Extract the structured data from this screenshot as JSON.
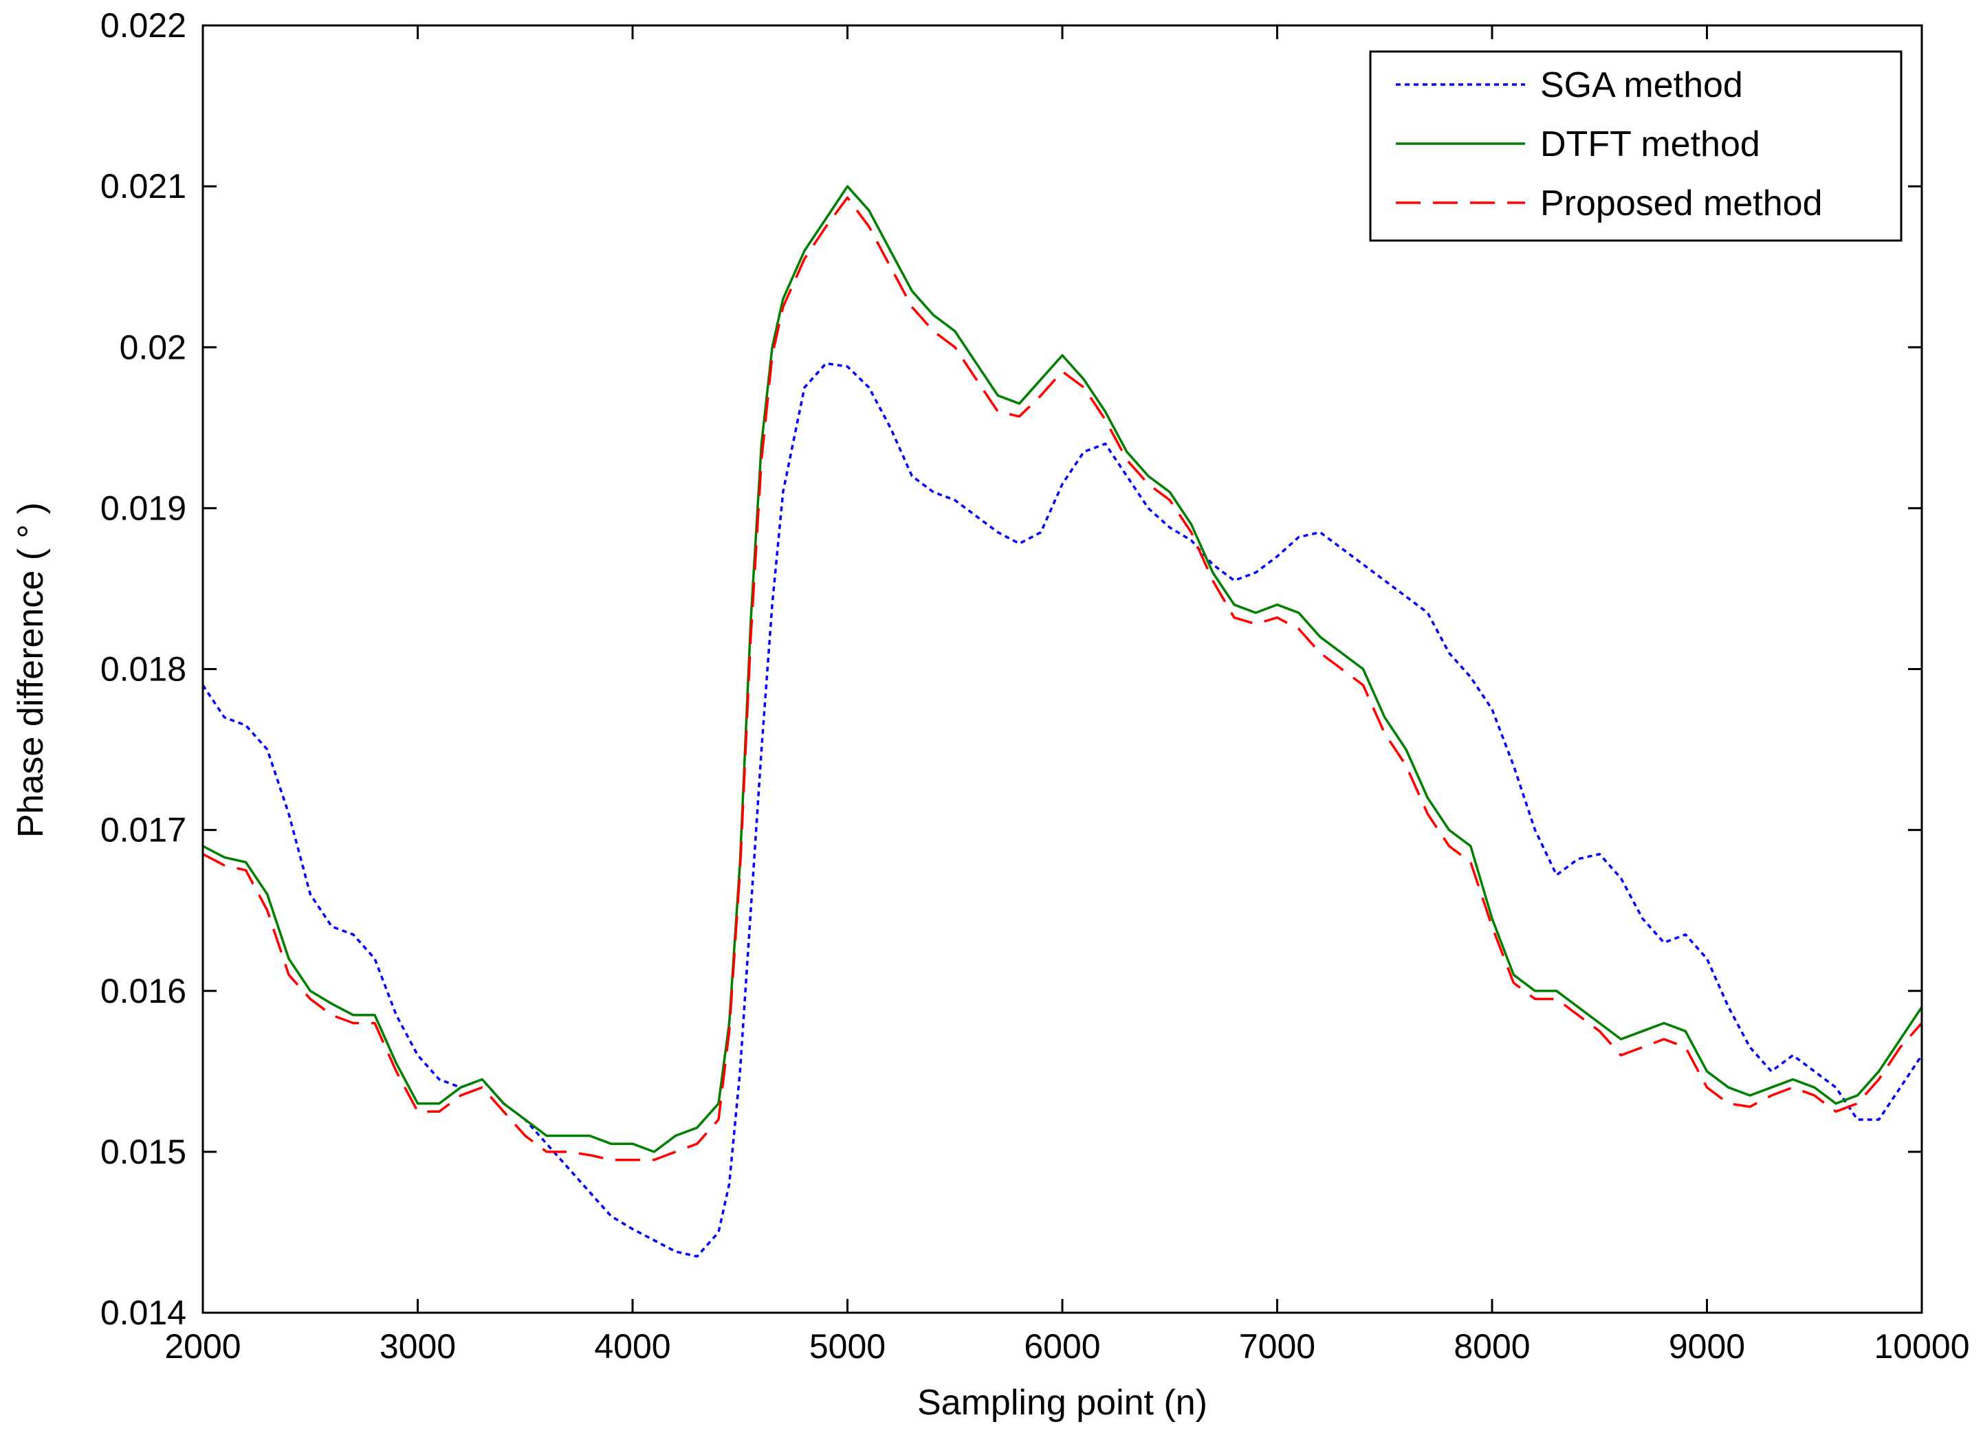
{
  "chart_data": {
    "type": "line",
    "title": "",
    "xlabel": "Sampling point (n)",
    "ylabel": "Phase difference ( ° )",
    "xlim": [
      2000,
      10000
    ],
    "ylim": [
      0.014,
      0.022
    ],
    "grid": false,
    "legend_position": "top-right",
    "x_ticks": [
      2000,
      3000,
      4000,
      5000,
      6000,
      7000,
      8000,
      9000,
      10000
    ],
    "x_tick_labels": [
      "2000",
      "3000",
      "4000",
      "5000",
      "6000",
      "7000",
      "8000",
      "9000",
      "10000"
    ],
    "y_ticks": [
      0.014,
      0.015,
      0.016,
      0.017,
      0.018,
      0.019,
      0.02,
      0.021,
      0.022
    ],
    "y_tick_labels": [
      "0.014",
      "0.015",
      "0.016",
      "0.017",
      "0.018",
      "0.019",
      "0.02",
      "0.021",
      "0.022"
    ],
    "x": [
      2000,
      2100,
      2200,
      2300,
      2400,
      2500,
      2600,
      2700,
      2800,
      2900,
      3000,
      3100,
      3200,
      3300,
      3400,
      3500,
      3600,
      3700,
      3800,
      3900,
      4000,
      4100,
      4200,
      4300,
      4400,
      4450,
      4500,
      4550,
      4600,
      4650,
      4700,
      4800,
      4900,
      5000,
      5100,
      5200,
      5300,
      5400,
      5500,
      5600,
      5700,
      5800,
      5900,
      6000,
      6100,
      6200,
      6300,
      6400,
      6500,
      6600,
      6700,
      6800,
      6900,
      7000,
      7100,
      7200,
      7300,
      7400,
      7500,
      7600,
      7700,
      7800,
      7900,
      8000,
      8100,
      8200,
      8300,
      8400,
      8500,
      8600,
      8700,
      8800,
      8900,
      9000,
      9100,
      9200,
      9300,
      9400,
      9500,
      9600,
      9700,
      9800,
      9900,
      10000
    ],
    "series": [
      {
        "name": "SGA method",
        "color": "#0000ff",
        "style": "dotted",
        "values": [
          0.0179,
          0.0177,
          0.01765,
          0.0175,
          0.0171,
          0.0166,
          0.0164,
          0.01635,
          0.0162,
          0.01585,
          0.0156,
          0.01545,
          0.0154,
          0.01545,
          0.0153,
          0.0152,
          0.01505,
          0.0149,
          0.01475,
          0.0146,
          0.01452,
          0.01445,
          0.01438,
          0.01435,
          0.0145,
          0.0148,
          0.0155,
          0.0165,
          0.0175,
          0.0184,
          0.0191,
          0.01975,
          0.0199,
          0.01988,
          0.01975,
          0.0195,
          0.0192,
          0.0191,
          0.01905,
          0.01895,
          0.01885,
          0.01878,
          0.01885,
          0.01915,
          0.01935,
          0.0194,
          0.0192,
          0.019,
          0.01888,
          0.0188,
          0.01865,
          0.01855,
          0.0186,
          0.0187,
          0.01882,
          0.01885,
          0.01875,
          0.01865,
          0.01855,
          0.01845,
          0.01835,
          0.0181,
          0.01795,
          0.01775,
          0.0174,
          0.017,
          0.01672,
          0.01682,
          0.01685,
          0.0167,
          0.01645,
          0.0163,
          0.01635,
          0.0162,
          0.0159,
          0.01565,
          0.0155,
          0.0156,
          0.0155,
          0.0154,
          0.0152,
          0.0152,
          0.0154,
          0.0156
        ]
      },
      {
        "name": "DTFT method",
        "color": "#007f00",
        "style": "solid",
        "values": [
          0.0169,
          0.01683,
          0.0168,
          0.0166,
          0.0162,
          0.016,
          0.01592,
          0.01585,
          0.01585,
          0.01555,
          0.0153,
          0.0153,
          0.0154,
          0.01545,
          0.0153,
          0.0152,
          0.0151,
          0.0151,
          0.0151,
          0.01505,
          0.01505,
          0.015,
          0.0151,
          0.01515,
          0.0153,
          0.0158,
          0.0168,
          0.0183,
          0.0194,
          0.02,
          0.0203,
          0.0206,
          0.0208,
          0.021,
          0.02085,
          0.0206,
          0.02035,
          0.0202,
          0.0201,
          0.0199,
          0.0197,
          0.01965,
          0.0198,
          0.01995,
          0.0198,
          0.0196,
          0.01935,
          0.0192,
          0.0191,
          0.0189,
          0.0186,
          0.0184,
          0.01835,
          0.0184,
          0.01835,
          0.0182,
          0.0181,
          0.018,
          0.0177,
          0.0175,
          0.0172,
          0.017,
          0.0169,
          0.01645,
          0.0161,
          0.016,
          0.016,
          0.0159,
          0.0158,
          0.0157,
          0.01575,
          0.0158,
          0.01575,
          0.0155,
          0.0154,
          0.01535,
          0.0154,
          0.01545,
          0.0154,
          0.0153,
          0.01535,
          0.0155,
          0.0157,
          0.0159
        ]
      },
      {
        "name": "Proposed method",
        "color": "#ff0000",
        "style": "dashed",
        "values": [
          0.01685,
          0.01678,
          0.01675,
          0.0165,
          0.0161,
          0.01595,
          0.01585,
          0.0158,
          0.0158,
          0.0155,
          0.01525,
          0.01525,
          0.01535,
          0.0154,
          0.01525,
          0.0151,
          0.015,
          0.015,
          0.01498,
          0.01495,
          0.01495,
          0.01495,
          0.015,
          0.01505,
          0.0152,
          0.01575,
          0.01675,
          0.0182,
          0.0193,
          0.01995,
          0.02025,
          0.02055,
          0.02075,
          0.02093,
          0.02075,
          0.0205,
          0.02025,
          0.0201,
          0.02,
          0.0198,
          0.0196,
          0.01957,
          0.0197,
          0.01985,
          0.01975,
          0.01955,
          0.0193,
          0.01915,
          0.01905,
          0.01885,
          0.01855,
          0.01832,
          0.01828,
          0.01832,
          0.01825,
          0.0181,
          0.018,
          0.0179,
          0.0176,
          0.0174,
          0.0171,
          0.0169,
          0.0168,
          0.0164,
          0.01605,
          0.01595,
          0.01595,
          0.01585,
          0.01575,
          0.0156,
          0.01565,
          0.0157,
          0.01565,
          0.0154,
          0.0153,
          0.01528,
          0.01535,
          0.0154,
          0.01535,
          0.01525,
          0.0153,
          0.01545,
          0.01565,
          0.0158
        ]
      }
    ]
  }
}
